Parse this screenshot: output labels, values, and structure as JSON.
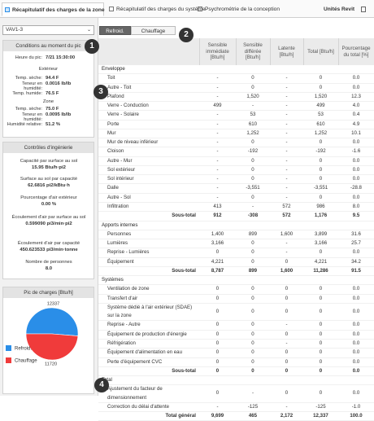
{
  "tabs": [
    "Récapitulatif des charges de la zone",
    "Récapitulatif des charges du système",
    "Psychrométrie de la conception"
  ],
  "units_button": "Unités Revit",
  "zone_select": "VAV1-3",
  "mode_buttons": [
    "Refroid.",
    "Chauffage"
  ],
  "conditions": {
    "title": "Conditions au moment du pic",
    "peak": [
      "Heure du pic:",
      "7/21 15:30:00"
    ],
    "groups": [
      {
        "title": "Extérieur",
        "items": [
          [
            "Temp. sèche:",
            "94.4 F"
          ],
          [
            "Teneur en humidité:",
            "0.0016 lb/lb"
          ],
          [
            "Temp. humide:",
            "76.5 F"
          ]
        ]
      },
      {
        "title": "Zone",
        "items": [
          [
            "Temp. sèche:",
            "75.0 F"
          ],
          [
            "Teneur en humidité:",
            "0.0095 lb/lb"
          ],
          [
            "Humidité relative:",
            "51.2 %"
          ]
        ]
      }
    ]
  },
  "controls": {
    "title": "Contrôles d'ingénierie",
    "items": [
      [
        "Capacité par surface au sol",
        "15.95 Btu/h·pi2"
      ],
      [
        "Surface au sol par capacité",
        "62.6816 pi2/kBtu·h"
      ],
      [
        "Pourcentage d'air extérieur",
        "0.00 %"
      ],
      [
        "Écoulement d'air par surface au sol",
        "0.599090 pi3/min·pi2"
      ],
      [
        "Écoulement d'air par capacité",
        "450.623533 pi3/min·tonne"
      ],
      [
        "Nombre de personnes",
        "8.0"
      ]
    ]
  },
  "peak_chart": {
    "type": "pie",
    "title": "Pic de charges [Btu/h]",
    "categories": [
      "Refroid.",
      "Chauffage"
    ],
    "values": [
      12337,
      11720
    ],
    "colors": [
      "#2a8ee8",
      "#f03b3b"
    ]
  },
  "table": {
    "headers": [
      "Sensible immédiate [Btu/h]",
      "Sensible différée [Btu/h]",
      "Latente [Btu/h]",
      "Total [Btu/h]",
      "Pourcentage du total [%]"
    ],
    "sections": [
      {
        "title": "Enveloppe",
        "rows": [
          [
            "Toit",
            "-",
            "0",
            "-",
            "0",
            "0.0"
          ],
          [
            "Autre - Toit",
            "-",
            "0",
            "-",
            "0",
            "0.0"
          ],
          [
            "Plafond",
            "-",
            "1,520",
            "-",
            "1,520",
            "12.3"
          ],
          [
            "Verre - Conduction",
            "499",
            "-",
            "-",
            "499",
            "4.0"
          ],
          [
            "Verre - Solaire",
            "-",
            "53",
            "-",
            "53",
            "0.4"
          ],
          [
            "Porte",
            "-",
            "610",
            "-",
            "610",
            "4.9"
          ],
          [
            "Mur",
            "-",
            "1,252",
            "-",
            "1,252",
            "10.1"
          ],
          [
            "Mur de niveau inférieur",
            "-",
            "0",
            "-",
            "0",
            "0.0"
          ],
          [
            "Cloison",
            "-",
            "-192",
            "-",
            "-192",
            "-1.6"
          ],
          [
            "Autre - Mur",
            "-",
            "0",
            "-",
            "0",
            "0.0"
          ],
          [
            "Sol extérieur",
            "-",
            "0",
            "-",
            "0",
            "0.0"
          ],
          [
            "Sol intérieur",
            "-",
            "0",
            "-",
            "0",
            "0.0"
          ],
          [
            "Dalle",
            "-",
            "-3,551",
            "-",
            "-3,551",
            "-28.8"
          ],
          [
            "Autre - Sol",
            "-",
            "0",
            "-",
            "0",
            "0.0"
          ],
          [
            "Infiltration",
            "413",
            "-",
            "572",
            "986",
            "8.0"
          ]
        ],
        "subtotal": [
          "Sous-total",
          "912",
          "-308",
          "572",
          "1,176",
          "9.5"
        ]
      },
      {
        "title": "Apports internes",
        "rows": [
          [
            "Personnes",
            "1,400",
            "899",
            "1,600",
            "3,899",
            "31.6"
          ],
          [
            "Lumières",
            "3,166",
            "0",
            "-",
            "3,166",
            "25.7"
          ],
          [
            "Reprise - Lumières",
            "0",
            "0",
            "-",
            "0",
            "0.0"
          ],
          [
            "Équipement",
            "4,221",
            "0",
            "0",
            "4,221",
            "34.2"
          ]
        ],
        "subtotal": [
          "Sous-total",
          "8,787",
          "899",
          "1,600",
          "11,286",
          "91.5"
        ]
      },
      {
        "title": "Systèmes",
        "rows": [
          [
            "Ventilation de zone",
            "0",
            "0",
            "0",
            "0",
            "0.0"
          ],
          [
            "Transfert d'air",
            "0",
            "0",
            "0",
            "0",
            "0.0"
          ],
          [
            "Système dédié à l'air extérieur (SDAE) sur la zone",
            "0",
            "0",
            "0",
            "0",
            "0.0"
          ],
          [
            "Reprise - Autre",
            "0",
            "0",
            "-",
            "0",
            "0.0"
          ],
          [
            "Équipement de production d'énergie",
            "0",
            "0",
            "0",
            "0",
            "0.0"
          ],
          [
            "Réfrigération",
            "0",
            "0",
            "-",
            "0",
            "0.0"
          ],
          [
            "Équipement d'alimentation en eau",
            "0",
            "0",
            "0",
            "0",
            "0.0"
          ],
          [
            "Perte d'équipement CVC",
            "0",
            "0",
            "0",
            "0",
            "0.0"
          ]
        ],
        "subtotal": [
          "Sous-total",
          "0",
          "0",
          "0",
          "0",
          "0.0"
        ]
      },
      {
        "title": "Total",
        "rows": [
          [
            "Ajustement du facteur de dimensionnement",
            "0",
            "-",
            "0",
            "0",
            "0.0"
          ],
          [
            "Correction du délai d'attente",
            "-",
            "-125",
            "-",
            "-125",
            "-1.0"
          ]
        ],
        "subtotal": [
          "Total général",
          "9,699",
          "465",
          "2,172",
          "12,337",
          "100.0"
        ]
      }
    ]
  },
  "badges": [
    "1",
    "2",
    "3",
    "4"
  ]
}
